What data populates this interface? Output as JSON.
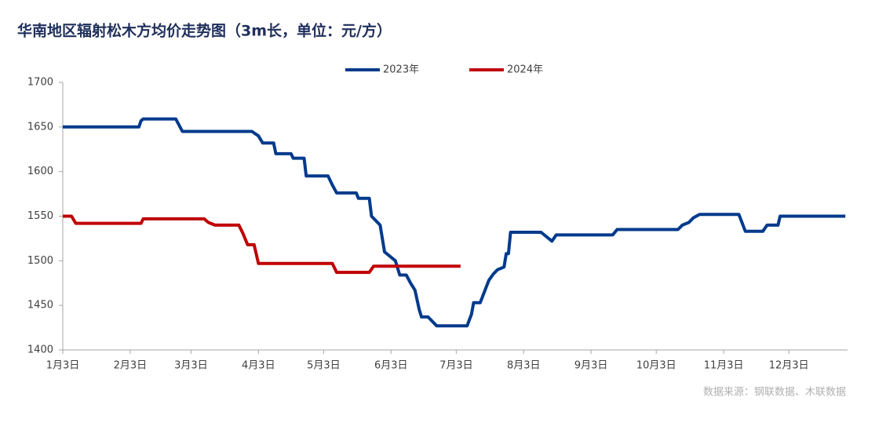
{
  "chart_data": {
    "type": "line",
    "title": "华南地区辐射松木方均价走势图（3m长，单位：元/方）",
    "source": "数据来源：钢联数据、木联数据",
    "xlim": [
      0,
      361
    ],
    "xticks": [
      {
        "value": 0,
        "label": "1月3日"
      },
      {
        "value": 31,
        "label": "2月3日"
      },
      {
        "value": 59,
        "label": "3月3日"
      },
      {
        "value": 90,
        "label": "4月3日"
      },
      {
        "value": 120,
        "label": "5月3日"
      },
      {
        "value": 151,
        "label": "6月3日"
      },
      {
        "value": 181,
        "label": "7月3日"
      },
      {
        "value": 212,
        "label": "8月3日"
      },
      {
        "value": 243,
        "label": "9月3日"
      },
      {
        "value": 273,
        "label": "10月3日"
      },
      {
        "value": 304,
        "label": "11月3日"
      },
      {
        "value": 334,
        "label": "12月3日"
      }
    ],
    "ylim": [
      1400,
      1700
    ],
    "yticks": [
      1400,
      1450,
      1500,
      1550,
      1600,
      1650,
      1700
    ],
    "grid": false,
    "legend": "top",
    "series": [
      {
        "name": "2023年",
        "color": "#003a8c",
        "x": [
          0,
          35,
          36,
          37,
          52,
          55,
          87,
          90,
          92,
          97,
          98,
          105,
          106,
          111,
          112,
          122,
          124,
          126,
          135,
          136,
          141,
          142,
          146,
          148,
          153,
          155,
          158,
          160,
          162,
          164,
          165,
          168,
          172,
          186,
          188,
          189,
          192,
          196,
          198,
          200,
          203,
          204,
          205,
          206,
          220,
          222,
          225,
          227,
          253,
          255,
          283,
          285,
          288,
          290,
          293,
          311,
          314,
          322,
          324,
          329,
          330,
          360
        ],
        "values": [
          1650,
          1650,
          1657,
          1659,
          1659,
          1645,
          1645,
          1640,
          1632,
          1632,
          1620,
          1620,
          1615,
          1615,
          1595,
          1595,
          1585,
          1576,
          1576,
          1570,
          1570,
          1550,
          1540,
          1510,
          1500,
          1484,
          1484,
          1475,
          1467,
          1445,
          1437,
          1437,
          1427,
          1427,
          1440,
          1453,
          1453,
          1478,
          1485,
          1490,
          1493,
          1508,
          1508,
          1532,
          1532,
          1528,
          1522,
          1529,
          1529,
          1535,
          1535,
          1540,
          1543,
          1548,
          1552,
          1552,
          1533,
          1533,
          1540,
          1540,
          1550,
          1550
        ]
      },
      {
        "name": "2024年",
        "color": "#c00000",
        "x": [
          0,
          4,
          6,
          36,
          37,
          65,
          67,
          70,
          81,
          83,
          85,
          88,
          90,
          124,
          126,
          141,
          143,
          183
        ],
        "values": [
          1550,
          1550,
          1542,
          1542,
          1547,
          1547,
          1543,
          1540,
          1540,
          1530,
          1518,
          1518,
          1497,
          1497,
          1487,
          1487,
          1494,
          1494
        ]
      }
    ]
  }
}
